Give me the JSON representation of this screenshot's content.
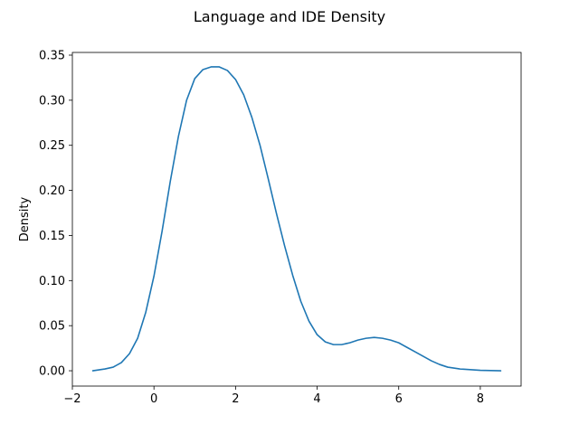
{
  "chart_data": {
    "type": "line",
    "title": "Language and IDE Density",
    "xlabel": "",
    "ylabel": "Density",
    "xlim": [
      -2,
      9
    ],
    "ylim": [
      -0.017,
      0.353
    ],
    "x_ticks": [
      -2,
      0,
      2,
      4,
      6,
      8
    ],
    "y_ticks": [
      0.0,
      0.05,
      0.1,
      0.15,
      0.2,
      0.25,
      0.3,
      0.35
    ],
    "x_tick_labels": [
      "−2",
      "0",
      "2",
      "4",
      "6",
      "8"
    ],
    "y_tick_labels": [
      "0.00",
      "0.05",
      "0.10",
      "0.15",
      "0.20",
      "0.25",
      "0.30",
      "0.35"
    ],
    "grid": false,
    "series": [
      {
        "color": "#1f77b4",
        "x": [
          -1.5,
          -1.2,
          -1.0,
          -0.8,
          -0.6,
          -0.4,
          -0.2,
          0.0,
          0.2,
          0.4,
          0.6,
          0.8,
          1.0,
          1.2,
          1.4,
          1.6,
          1.8,
          2.0,
          2.2,
          2.4,
          2.6,
          2.8,
          3.0,
          3.2,
          3.4,
          3.6,
          3.8,
          4.0,
          4.2,
          4.4,
          4.6,
          4.8,
          5.0,
          5.2,
          5.4,
          5.6,
          5.8,
          6.0,
          6.2,
          6.4,
          6.6,
          6.8,
          7.0,
          7.2,
          7.5,
          8.0,
          8.5
        ],
        "y": [
          0.0,
          0.002,
          0.004,
          0.009,
          0.019,
          0.036,
          0.065,
          0.105,
          0.155,
          0.21,
          0.26,
          0.3,
          0.324,
          0.334,
          0.337,
          0.337,
          0.333,
          0.323,
          0.306,
          0.281,
          0.25,
          0.213,
          0.175,
          0.139,
          0.106,
          0.077,
          0.055,
          0.04,
          0.032,
          0.029,
          0.029,
          0.031,
          0.034,
          0.036,
          0.037,
          0.036,
          0.034,
          0.031,
          0.026,
          0.021,
          0.016,
          0.011,
          0.007,
          0.004,
          0.002,
          0.0005,
          0.0
        ]
      }
    ]
  }
}
